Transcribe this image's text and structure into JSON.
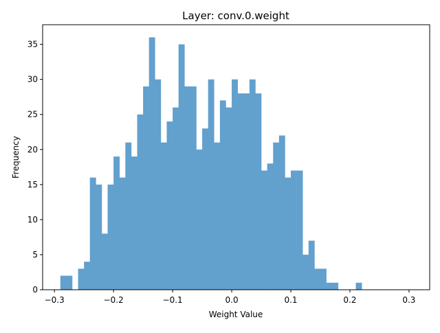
{
  "chart_data": {
    "type": "bar",
    "title": "Layer: conv.0.weight",
    "xlabel": "Weight Value",
    "ylabel": "Frequency",
    "bar_color": "#62a0ce",
    "bin_start": -0.29,
    "bin_width": 0.01,
    "values": [
      2,
      2,
      0,
      3,
      4,
      16,
      15,
      8,
      15,
      19,
      16,
      21,
      19,
      25,
      29,
      36,
      30,
      21,
      24,
      26,
      35,
      29,
      29,
      20,
      23,
      30,
      21,
      27,
      26,
      30,
      28,
      28,
      30,
      28,
      17,
      18,
      21,
      22,
      16,
      17,
      17,
      5,
      7,
      3,
      3,
      1,
      1,
      0,
      0,
      0,
      1
    ],
    "xlim": [
      -0.32,
      0.335
    ],
    "ylim": [
      0,
      37.8
    ],
    "xticks": [
      -0.3,
      -0.2,
      -0.1,
      0.0,
      0.1,
      0.2,
      0.3
    ],
    "xtick_labels": [
      "−0.3",
      "−0.2",
      "−0.1",
      "0.0",
      "0.1",
      "0.2",
      "0.3"
    ],
    "yticks": [
      0,
      5,
      10,
      15,
      20,
      25,
      30,
      35
    ],
    "ytick_labels": [
      "0",
      "5",
      "10",
      "15",
      "20",
      "25",
      "30",
      "35"
    ],
    "grid": false,
    "legend": "none"
  }
}
